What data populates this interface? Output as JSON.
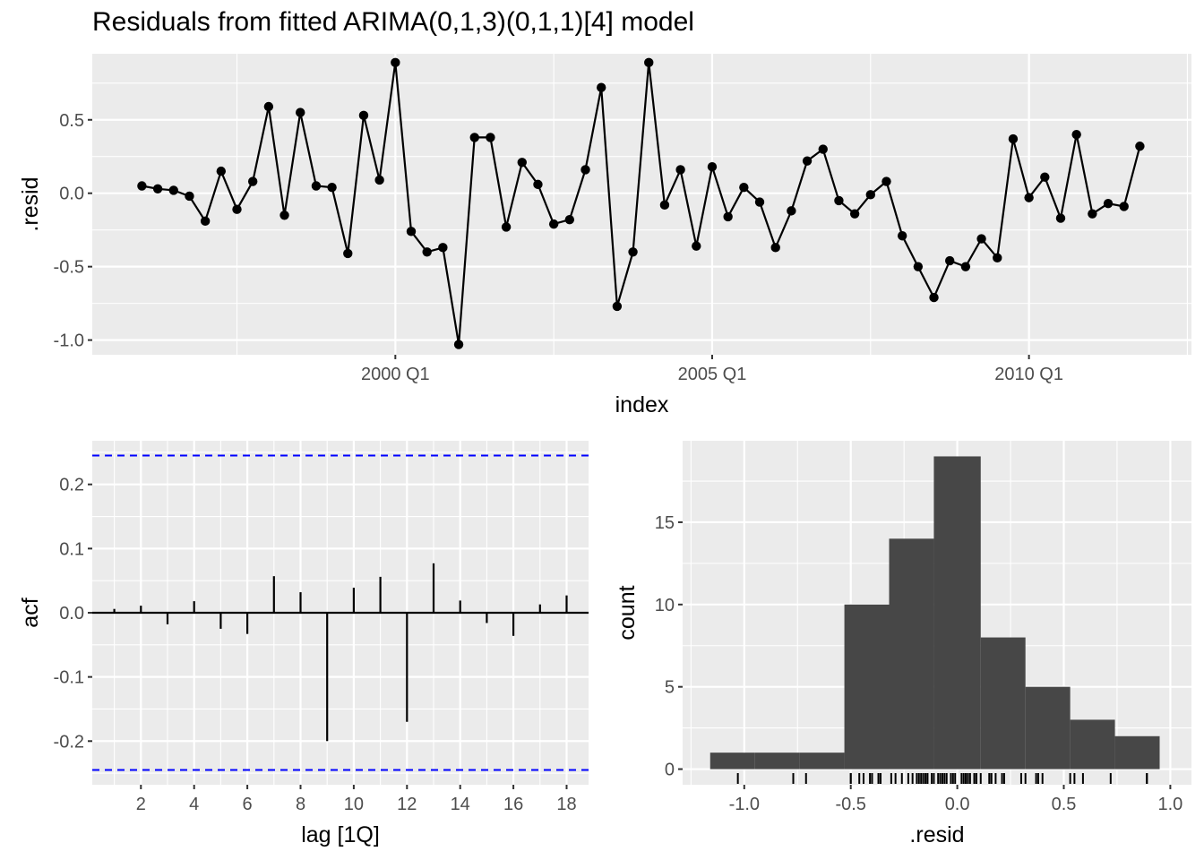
{
  "title": "Residuals from fitted ARIMA(0,1,3)(0,1,1)[4] model",
  "chart_data": [
    {
      "type": "line",
      "panel": "residuals-time-series",
      "xlabel": "index",
      "ylabel": ".resid",
      "x_start": "1996 Q1",
      "x_tick_labels": [
        "2000 Q1",
        "2005 Q1",
        "2010 Q1"
      ],
      "y_tick_labels": [
        "0.5",
        "0.0",
        "-0.5",
        "-1.0"
      ],
      "ylim": [
        -1.1,
        0.95
      ],
      "markers": true,
      "values": [
        0.05,
        0.03,
        0.02,
        -0.02,
        -0.19,
        0.15,
        -0.11,
        0.08,
        0.59,
        -0.15,
        0.55,
        0.05,
        0.04,
        -0.41,
        0.53,
        0.09,
        0.89,
        -0.26,
        -0.4,
        -0.37,
        -1.03,
        0.38,
        0.38,
        -0.23,
        0.21,
        0.06,
        -0.21,
        -0.18,
        0.16,
        0.72,
        -0.77,
        -0.4,
        0.89,
        -0.08,
        0.16,
        -0.36,
        0.18,
        -0.16,
        0.04,
        -0.06,
        -0.37,
        -0.12,
        0.22,
        0.3,
        -0.05,
        -0.14,
        -0.01,
        0.08,
        -0.29,
        -0.5,
        -0.71,
        -0.46,
        -0.5,
        -0.31,
        -0.44,
        0.37,
        -0.03,
        0.11,
        -0.17,
        0.4,
        -0.14,
        -0.07,
        -0.09,
        0.32
      ]
    },
    {
      "type": "bar",
      "panel": "acf",
      "xlabel": "lag [1Q]",
      "ylabel": "acf",
      "x_tick_labels": [
        "2",
        "4",
        "6",
        "8",
        "10",
        "12",
        "14",
        "16",
        "18"
      ],
      "y_tick_labels": [
        "0.2",
        "0.1",
        "0.0",
        "-0.1",
        "-0.2"
      ],
      "ylim": [
        -0.268,
        0.268
      ],
      "confidence_bound": 0.245,
      "confidence_color": "#0000ff",
      "lags": [
        1,
        2,
        3,
        4,
        5,
        6,
        7,
        8,
        9,
        10,
        11,
        12,
        13,
        14,
        15,
        16,
        17,
        18
      ],
      "values": [
        0.006,
        0.011,
        -0.018,
        0.018,
        -0.025,
        -0.033,
        0.057,
        0.032,
        -0.2,
        0.039,
        0.056,
        -0.17,
        0.077,
        0.019,
        -0.016,
        -0.036,
        0.013,
        0.027
      ]
    },
    {
      "type": "histogram",
      "panel": "residual-histogram",
      "xlabel": ".resid",
      "ylabel": "count",
      "x_tick_labels": [
        "-1.0",
        "-0.5",
        "0.0",
        "0.5",
        "1.0"
      ],
      "y_tick_labels": [
        "0",
        "5",
        "10",
        "15"
      ],
      "xlim": [
        -1.28,
        1.07
      ],
      "ylim": [
        -0.95,
        19.95
      ],
      "bin_edges": [
        -1.16,
        -0.95,
        -0.74,
        -0.53,
        -0.32,
        -0.11,
        0.11,
        0.32,
        0.53,
        0.74,
        0.95
      ],
      "counts": [
        1,
        1,
        1,
        10,
        14,
        19,
        8,
        5,
        3,
        2
      ],
      "rug": true,
      "bar_color": "#474747"
    }
  ]
}
